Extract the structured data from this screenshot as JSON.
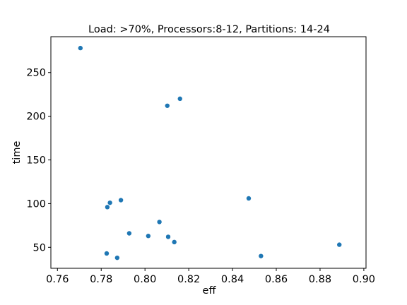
{
  "chart_data": {
    "type": "scatter",
    "title": "Load: >70%, Processors:8-12, Partitions: 14-24",
    "xlabel": "eff",
    "ylabel": "time",
    "xlim": [
      0.757,
      0.901
    ],
    "ylim": [
      26,
      291
    ],
    "xticks": [
      0.76,
      0.78,
      0.8,
      0.82,
      0.84,
      0.86,
      0.88,
      0.9
    ],
    "xtick_labels": [
      "0.76",
      "0.78",
      "0.80",
      "0.82",
      "0.84",
      "0.86",
      "0.88",
      "0.90"
    ],
    "yticks": [
      50,
      100,
      150,
      200,
      250
    ],
    "ytick_labels": [
      "50",
      "100",
      "150",
      "200",
      "250"
    ],
    "grid": false,
    "marker_color": "#1f77b4",
    "points": [
      {
        "x": 0.7705,
        "y": 278
      },
      {
        "x": 0.7825,
        "y": 43
      },
      {
        "x": 0.7828,
        "y": 96
      },
      {
        "x": 0.784,
        "y": 101
      },
      {
        "x": 0.7873,
        "y": 38
      },
      {
        "x": 0.789,
        "y": 104
      },
      {
        "x": 0.7928,
        "y": 66
      },
      {
        "x": 0.8015,
        "y": 63
      },
      {
        "x": 0.8066,
        "y": 79
      },
      {
        "x": 0.8102,
        "y": 212
      },
      {
        "x": 0.8106,
        "y": 62
      },
      {
        "x": 0.8134,
        "y": 56
      },
      {
        "x": 0.816,
        "y": 220
      },
      {
        "x": 0.8474,
        "y": 106
      },
      {
        "x": 0.853,
        "y": 40
      },
      {
        "x": 0.8888,
        "y": 53
      }
    ]
  }
}
